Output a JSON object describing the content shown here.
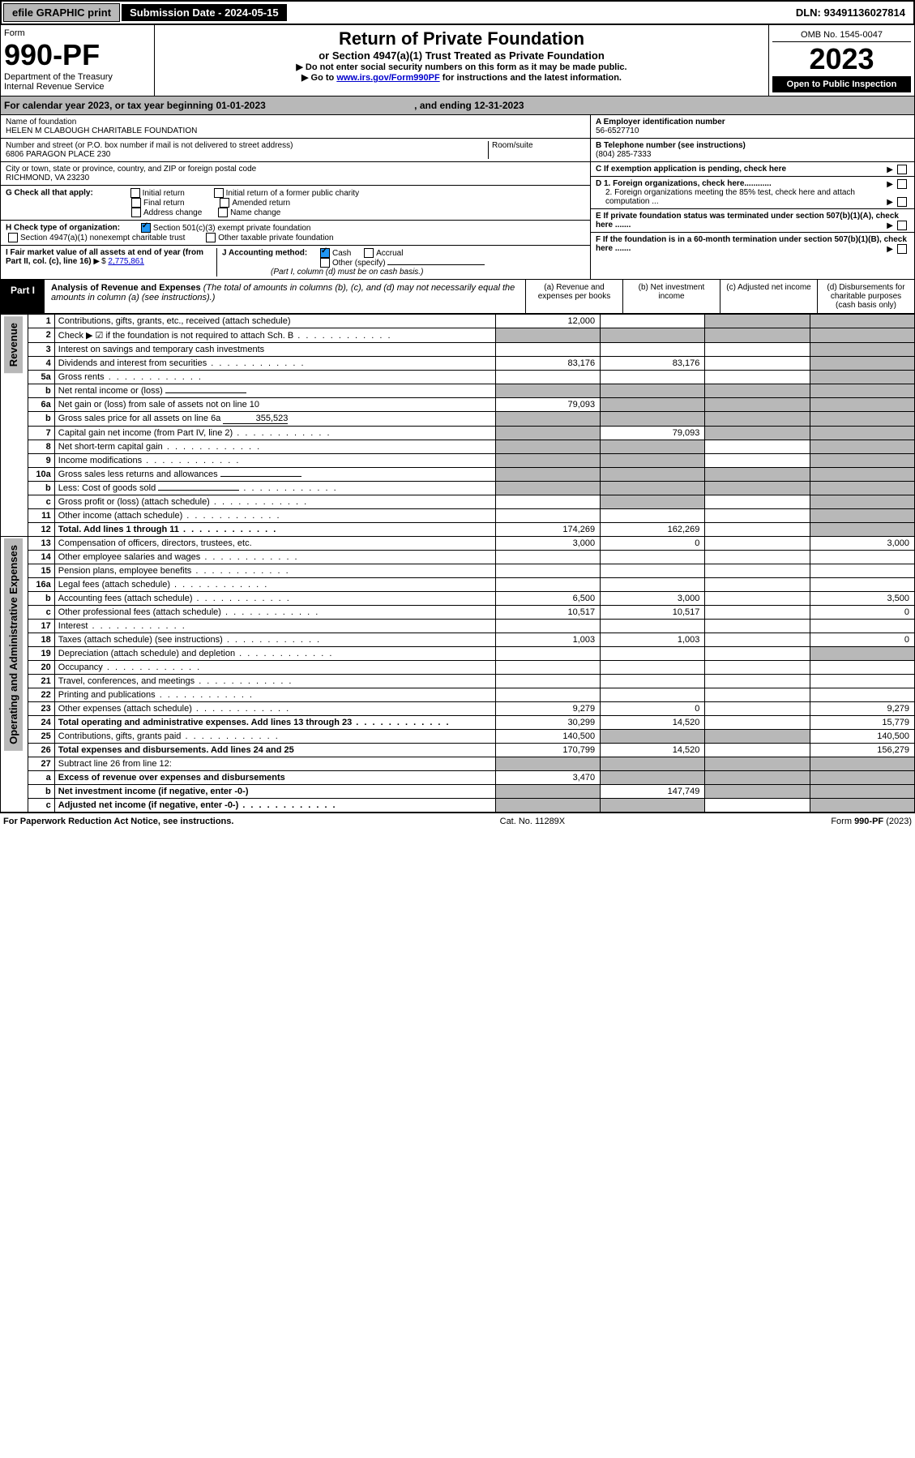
{
  "topbar": {
    "efile": "efile GRAPHIC print",
    "subdate_label": "Submission Date - 2024-05-15",
    "dln": "DLN: 93491136027814"
  },
  "header": {
    "form_word": "Form",
    "form_num": "990-PF",
    "dept": "Department of the Treasury",
    "irs": "Internal Revenue Service",
    "title": "Return of Private Foundation",
    "subtitle": "or Section 4947(a)(1) Trust Treated as Private Foundation",
    "instr1": "▶ Do not enter social security numbers on this form as it may be made public.",
    "instr2_pre": "▶ Go to ",
    "instr2_link": "www.irs.gov/Form990PF",
    "instr2_post": " for instructions and the latest information.",
    "omb": "OMB No. 1545-0047",
    "year": "2023",
    "open": "Open to Public Inspection"
  },
  "cal": {
    "text": "For calendar year 2023, or tax year beginning 01-01-2023",
    "ending": ", and ending 12-31-2023"
  },
  "info": {
    "name_label": "Name of foundation",
    "name": "HELEN M CLABOUGH CHARITABLE FOUNDATION",
    "addr_label": "Number and street (or P.O. box number if mail is not delivered to street address)",
    "addr": "6806 PARAGON PLACE 230",
    "room_label": "Room/suite",
    "city_label": "City or town, state or province, country, and ZIP or foreign postal code",
    "city": "RICHMOND, VA  23230",
    "a_label": "A Employer identification number",
    "a_val": "56-6527710",
    "b_label": "B Telephone number (see instructions)",
    "b_val": "(804) 285-7333",
    "c_label": "C If exemption application is pending, check here",
    "d1": "D 1. Foreign organizations, check here............",
    "d2": "2. Foreign organizations meeting the 85% test, check here and attach computation ...",
    "e": "E  If private foundation status was terminated under section 507(b)(1)(A), check here .......",
    "f": "F  If the foundation is in a 60-month termination under section 507(b)(1)(B), check here .......",
    "g_label": "G Check all that apply:",
    "g_opts": [
      "Initial return",
      "Initial return of a former public charity",
      "Final return",
      "Amended return",
      "Address change",
      "Name change"
    ],
    "h_label": "H Check type of organization:",
    "h_opt1": "Section 501(c)(3) exempt private foundation",
    "h_opt2": "Section 4947(a)(1) nonexempt charitable trust",
    "h_opt3": "Other taxable private foundation",
    "i_label": "I Fair market value of all assets at end of year (from Part II, col. (c), line 16)",
    "i_val": "2,775,861",
    "j_label": "J Accounting method:",
    "j_cash": "Cash",
    "j_accrual": "Accrual",
    "j_other": "Other (specify)",
    "j_note": "(Part I, column (d) must be on cash basis.)"
  },
  "part1": {
    "tag": "Part I",
    "title": "Analysis of Revenue and Expenses",
    "note": "(The total of amounts in columns (b), (c), and (d) may not necessarily equal the amounts in column (a) (see instructions).)",
    "col_a": "(a)   Revenue and expenses per books",
    "col_b": "(b)   Net investment income",
    "col_c": "(c)   Adjusted net income",
    "col_d": "(d)  Disbursements for charitable purposes (cash basis only)"
  },
  "side_rev": "Revenue",
  "side_exp": "Operating and Administrative Expenses",
  "rows": [
    {
      "n": "1",
      "lbl": "Contributions, gifts, grants, etc., received (attach schedule)",
      "a": "12,000",
      "b": "",
      "c": "",
      "d": "",
      "greyB": false,
      "greyC": true,
      "greyD": true
    },
    {
      "n": "2",
      "lbl": "Check ▶ ☑ if the foundation is not required to attach Sch. B",
      "dots": true,
      "greyA": true,
      "greyB": true,
      "greyC": true,
      "greyD": true,
      "bold_not": true
    },
    {
      "n": "3",
      "lbl": "Interest on savings and temporary cash investments",
      "a": "",
      "b": "",
      "c": "",
      "d": "",
      "greyD": true
    },
    {
      "n": "4",
      "lbl": "Dividends and interest from securities",
      "dots": true,
      "a": "83,176",
      "b": "83,176",
      "c": "",
      "d": "",
      "greyD": true
    },
    {
      "n": "5a",
      "lbl": "Gross rents",
      "dots": true,
      "a": "",
      "b": "",
      "c": "",
      "d": "",
      "greyD": true
    },
    {
      "n": "b",
      "lbl": "Net rental income or (loss)",
      "inline": true,
      "greyA": true,
      "greyB": true,
      "greyC": true,
      "greyD": true
    },
    {
      "n": "6a",
      "lbl": "Net gain or (loss) from sale of assets not on line 10",
      "a": "79,093",
      "greyB": true,
      "greyC": true,
      "greyD": true
    },
    {
      "n": "b",
      "lbl": "Gross sales price for all assets on line 6a",
      "inline_val": "355,523",
      "greyA": true,
      "greyB": true,
      "greyC": true,
      "greyD": true
    },
    {
      "n": "7",
      "lbl": "Capital gain net income (from Part IV, line 2)",
      "dots": true,
      "greyA": true,
      "b": "79,093",
      "greyC": true,
      "greyD": true
    },
    {
      "n": "8",
      "lbl": "Net short-term capital gain",
      "dots": true,
      "greyA": true,
      "greyB": true,
      "c": "",
      "greyD": true
    },
    {
      "n": "9",
      "lbl": "Income modifications",
      "dots": true,
      "greyA": true,
      "greyB": true,
      "c": "",
      "greyD": true
    },
    {
      "n": "10a",
      "lbl": "Gross sales less returns and allowances",
      "inline": true,
      "greyA": true,
      "greyB": true,
      "greyC": true,
      "greyD": true
    },
    {
      "n": "b",
      "lbl": "Less: Cost of goods sold",
      "dots": true,
      "inline": true,
      "greyA": true,
      "greyB": true,
      "greyC": true,
      "greyD": true
    },
    {
      "n": "c",
      "lbl": "Gross profit or (loss) (attach schedule)",
      "dots": true,
      "a": "",
      "greyB": true,
      "c": "",
      "greyD": true
    },
    {
      "n": "11",
      "lbl": "Other income (attach schedule)",
      "dots": true,
      "a": "",
      "b": "",
      "c": "",
      "greyD": true
    },
    {
      "n": "12",
      "lbl": "Total. Add lines 1 through 11",
      "dots": true,
      "bold": true,
      "a": "174,269",
      "b": "162,269",
      "c": "",
      "greyD": true
    },
    {
      "n": "13",
      "lbl": "Compensation of officers, directors, trustees, etc.",
      "a": "3,000",
      "b": "0",
      "c": "",
      "d": "3,000"
    },
    {
      "n": "14",
      "lbl": "Other employee salaries and wages",
      "dots": true,
      "a": "",
      "b": "",
      "c": "",
      "d": ""
    },
    {
      "n": "15",
      "lbl": "Pension plans, employee benefits",
      "dots": true,
      "a": "",
      "b": "",
      "c": "",
      "d": ""
    },
    {
      "n": "16a",
      "lbl": "Legal fees (attach schedule)",
      "dots": true,
      "a": "",
      "b": "",
      "c": "",
      "d": ""
    },
    {
      "n": "b",
      "lbl": "Accounting fees (attach schedule)",
      "dots": true,
      "a": "6,500",
      "b": "3,000",
      "c": "",
      "d": "3,500"
    },
    {
      "n": "c",
      "lbl": "Other professional fees (attach schedule)",
      "dots": true,
      "a": "10,517",
      "b": "10,517",
      "c": "",
      "d": "0"
    },
    {
      "n": "17",
      "lbl": "Interest",
      "dots": true,
      "a": "",
      "b": "",
      "c": "",
      "d": ""
    },
    {
      "n": "18",
      "lbl": "Taxes (attach schedule) (see instructions)",
      "dots": true,
      "a": "1,003",
      "b": "1,003",
      "c": "",
      "d": "0"
    },
    {
      "n": "19",
      "lbl": "Depreciation (attach schedule) and depletion",
      "dots": true,
      "a": "",
      "b": "",
      "c": "",
      "greyD": true
    },
    {
      "n": "20",
      "lbl": "Occupancy",
      "dots": true,
      "a": "",
      "b": "",
      "c": "",
      "d": ""
    },
    {
      "n": "21",
      "lbl": "Travel, conferences, and meetings",
      "dots": true,
      "a": "",
      "b": "",
      "c": "",
      "d": ""
    },
    {
      "n": "22",
      "lbl": "Printing and publications",
      "dots": true,
      "a": "",
      "b": "",
      "c": "",
      "d": ""
    },
    {
      "n": "23",
      "lbl": "Other expenses (attach schedule)",
      "dots": true,
      "a": "9,279",
      "b": "0",
      "c": "",
      "d": "9,279"
    },
    {
      "n": "24",
      "lbl": "Total operating and administrative expenses. Add lines 13 through 23",
      "dots": true,
      "bold": true,
      "a": "30,299",
      "b": "14,520",
      "c": "",
      "d": "15,779",
      "twoLine": true
    },
    {
      "n": "25",
      "lbl": "Contributions, gifts, grants paid",
      "dots": true,
      "a": "140,500",
      "greyB": true,
      "greyC": true,
      "d": "140,500"
    },
    {
      "n": "26",
      "lbl": "Total expenses and disbursements. Add lines 24 and 25",
      "bold": true,
      "a": "170,799",
      "b": "14,520",
      "c": "",
      "d": "156,279",
      "twoLine": true
    },
    {
      "n": "27",
      "lbl": "Subtract line 26 from line 12:",
      "greyA": true,
      "greyB": true,
      "greyC": true,
      "greyD": true
    },
    {
      "n": "a",
      "lbl": "Excess of revenue over expenses and disbursements",
      "bold": true,
      "a": "3,470",
      "greyB": true,
      "greyC": true,
      "greyD": true
    },
    {
      "n": "b",
      "lbl": "Net investment income (if negative, enter -0-)",
      "bold": true,
      "greyA": true,
      "b": "147,749",
      "greyC": true,
      "greyD": true
    },
    {
      "n": "c",
      "lbl": "Adjusted net income (if negative, enter -0-)",
      "dots": true,
      "bold": true,
      "greyA": true,
      "greyB": true,
      "c": "",
      "greyD": true
    }
  ],
  "footer": {
    "left": "For Paperwork Reduction Act Notice, see instructions.",
    "mid": "Cat. No. 11289X",
    "right": "Form 990-PF (2023)"
  }
}
